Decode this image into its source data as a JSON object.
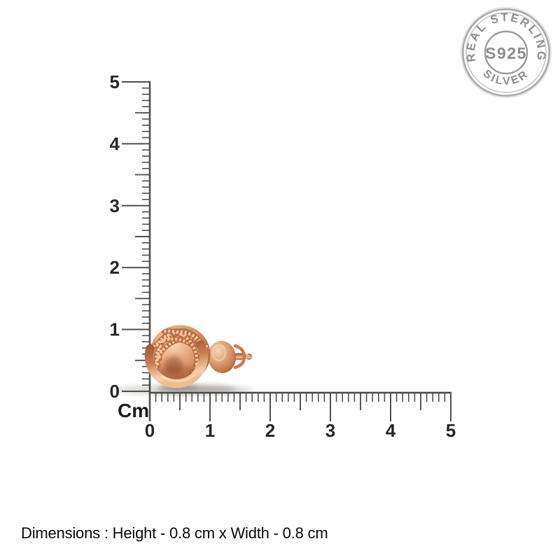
{
  "page": {
    "background_color": "#ffffff"
  },
  "badge": {
    "arc_top": "REAL STERLING",
    "center": "S925",
    "arc_bottom": "SILVER",
    "text_color": "#8d8d8d",
    "ring_color": "#a9a9a9"
  },
  "ruler": {
    "unit": "Cm",
    "vertical_labels": [
      "5",
      "4",
      "3",
      "2",
      "1",
      "0"
    ],
    "horizontal_labels": [
      "0",
      "1",
      "2",
      "3",
      "4",
      "5"
    ],
    "range_cm": [
      0,
      5
    ],
    "tick_color": "#4f4f4f",
    "label_color": "#262626"
  },
  "product": {
    "description": "rose gold love knot stud earring with butterfly back",
    "metal_color": "#d4906a"
  },
  "caption": {
    "text": "Dimensions : Height - 0.8 cm x Width - 0.8 cm",
    "height": "0.8 cm",
    "width": "0.8 cm"
  }
}
